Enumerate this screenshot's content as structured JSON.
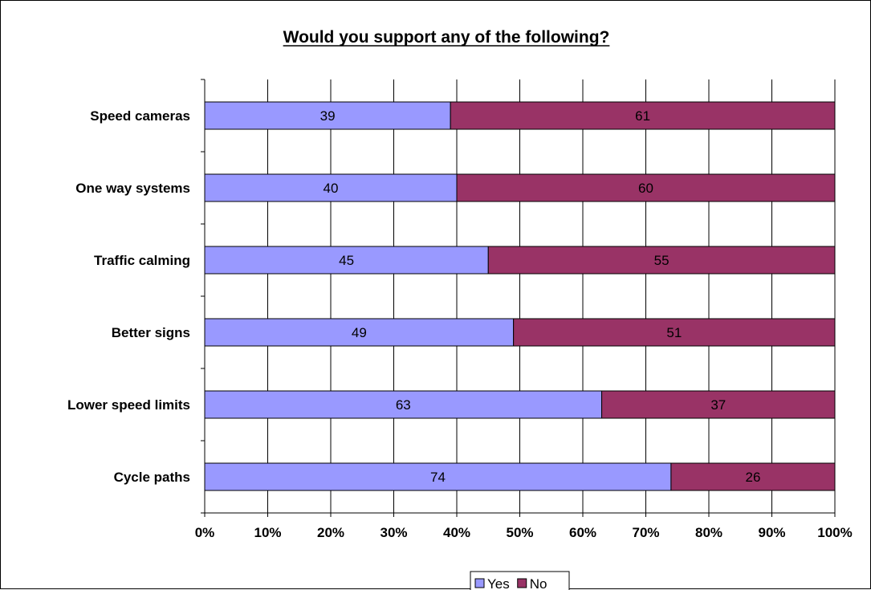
{
  "chart_data": {
    "type": "bar",
    "orientation": "horizontal",
    "stacked": true,
    "percent_stacked": true,
    "title": "Would you support any of the following?",
    "categories": [
      "Speed cameras",
      "One way systems",
      "Traffic calming",
      "Better signs",
      "Lower speed limits",
      "Cycle paths"
    ],
    "series": [
      {
        "name": "Yes",
        "values": [
          39,
          40,
          45,
          49,
          63,
          74
        ],
        "color": "#9999ff"
      },
      {
        "name": "No",
        "values": [
          61,
          60,
          55,
          51,
          37,
          26
        ],
        "color": "#993366"
      }
    ],
    "x_ticks": [
      "0%",
      "10%",
      "20%",
      "30%",
      "40%",
      "50%",
      "60%",
      "70%",
      "80%",
      "90%",
      "100%"
    ],
    "xlim": [
      0,
      100
    ],
    "grid": true,
    "legend_position": "bottom-center",
    "xlabel": "",
    "ylabel": ""
  }
}
